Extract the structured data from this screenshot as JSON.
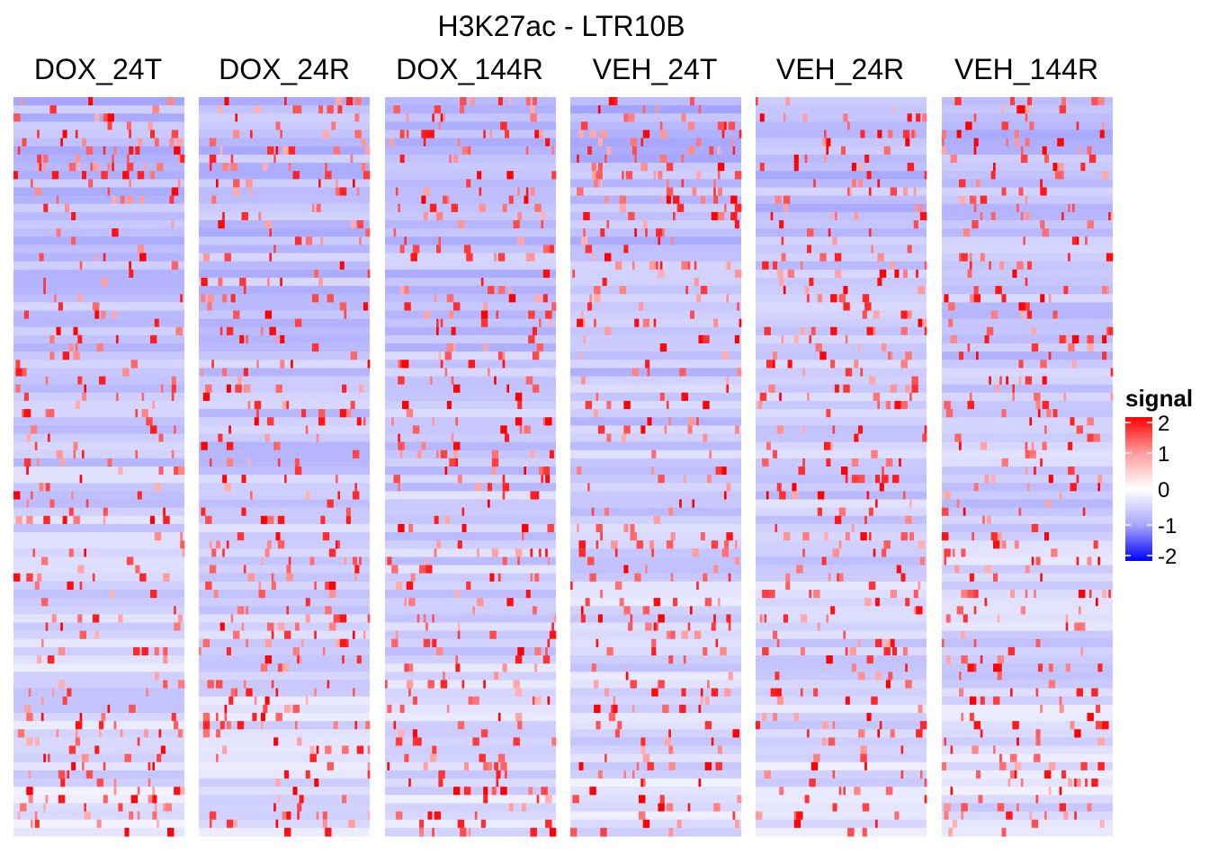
{
  "chart_data": {
    "type": "heatmap",
    "title": "H3K27ac - LTR10B",
    "panels": [
      {
        "label": "DOX_24T"
      },
      {
        "label": "DOX_24R"
      },
      {
        "label": "DOX_144R"
      },
      {
        "label": "VEH_24T"
      },
      {
        "label": "VEH_24R"
      },
      {
        "label": "VEH_144R"
      }
    ],
    "n_rows": 90,
    "n_cols": 80,
    "value_range": [
      -2,
      2
    ],
    "color_scale": {
      "low": "#0000ff",
      "mid": "#ffffff",
      "high": "#ff0000"
    },
    "legend": {
      "title": "signal",
      "ticks": [
        2,
        1,
        0,
        -1,
        -2
      ],
      "tick_labels": [
        "2",
        "1",
        "0",
        "-1",
        "-2"
      ],
      "position": "right"
    }
  }
}
